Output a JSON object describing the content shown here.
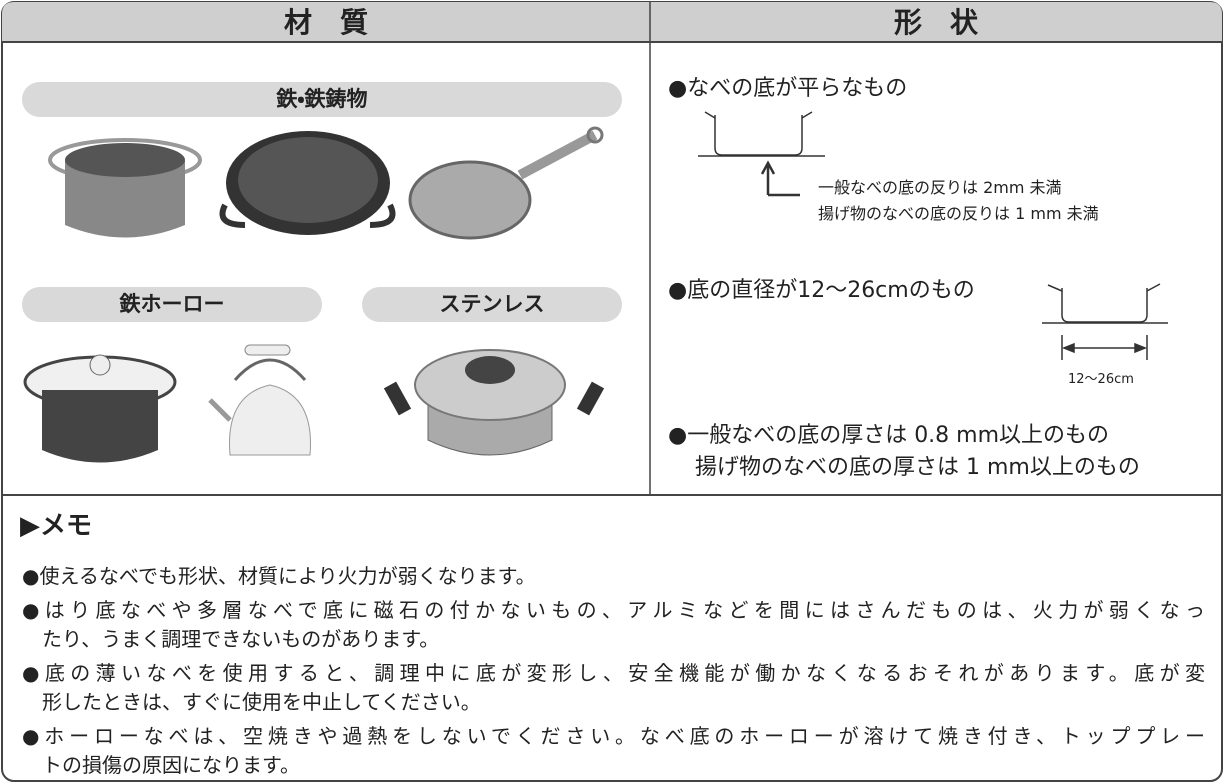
{
  "headers": [
    "材　質",
    "形　状"
  ],
  "materials": {
    "iron": "鉄・鉄鋳物",
    "enamel": "鉄ホーロー",
    "stainless": "ステンレス"
  },
  "shape": {
    "flat": "●なべの底が平らなもの",
    "flat_notes": [
      "一般なべの底の反りは 2mm 未満",
      "揚げ物のなべの底の反りは 1 mm 未満"
    ],
    "diameter": "●底の直径が12～26cmのもの",
    "diameter_label": "12～26cm",
    "thickness": [
      "●一般なべの底の厚さは 0.8 mm以上のもの",
      "揚げ物のなべの底の厚さは 1 mm以上のもの"
    ]
  },
  "memo": {
    "title": "▶メモ",
    "items": [
      [
        "●使えるなべでも形状、材質により火力が弱くなります。"
      ],
      [
        "●はり底なべや多層なべで底に磁石の付かないもの、アルミなどを間にはさんだものは、火力が弱くなっ",
        "たり、うまく調理できないものがあります。"
      ],
      [
        "●底の薄いなべを使用すると、調理中に底が変形し、安全機能が働かなくなるおそれがあります。底が変",
        "形したときは、すぐに使用を中止してください。"
      ],
      [
        "●ホーローなべは、空焼きや過熱をしないでください。なべ底のホーローが溶けて焼き付き、トッププレー",
        "トの損傷の原因になります。"
      ]
    ]
  }
}
